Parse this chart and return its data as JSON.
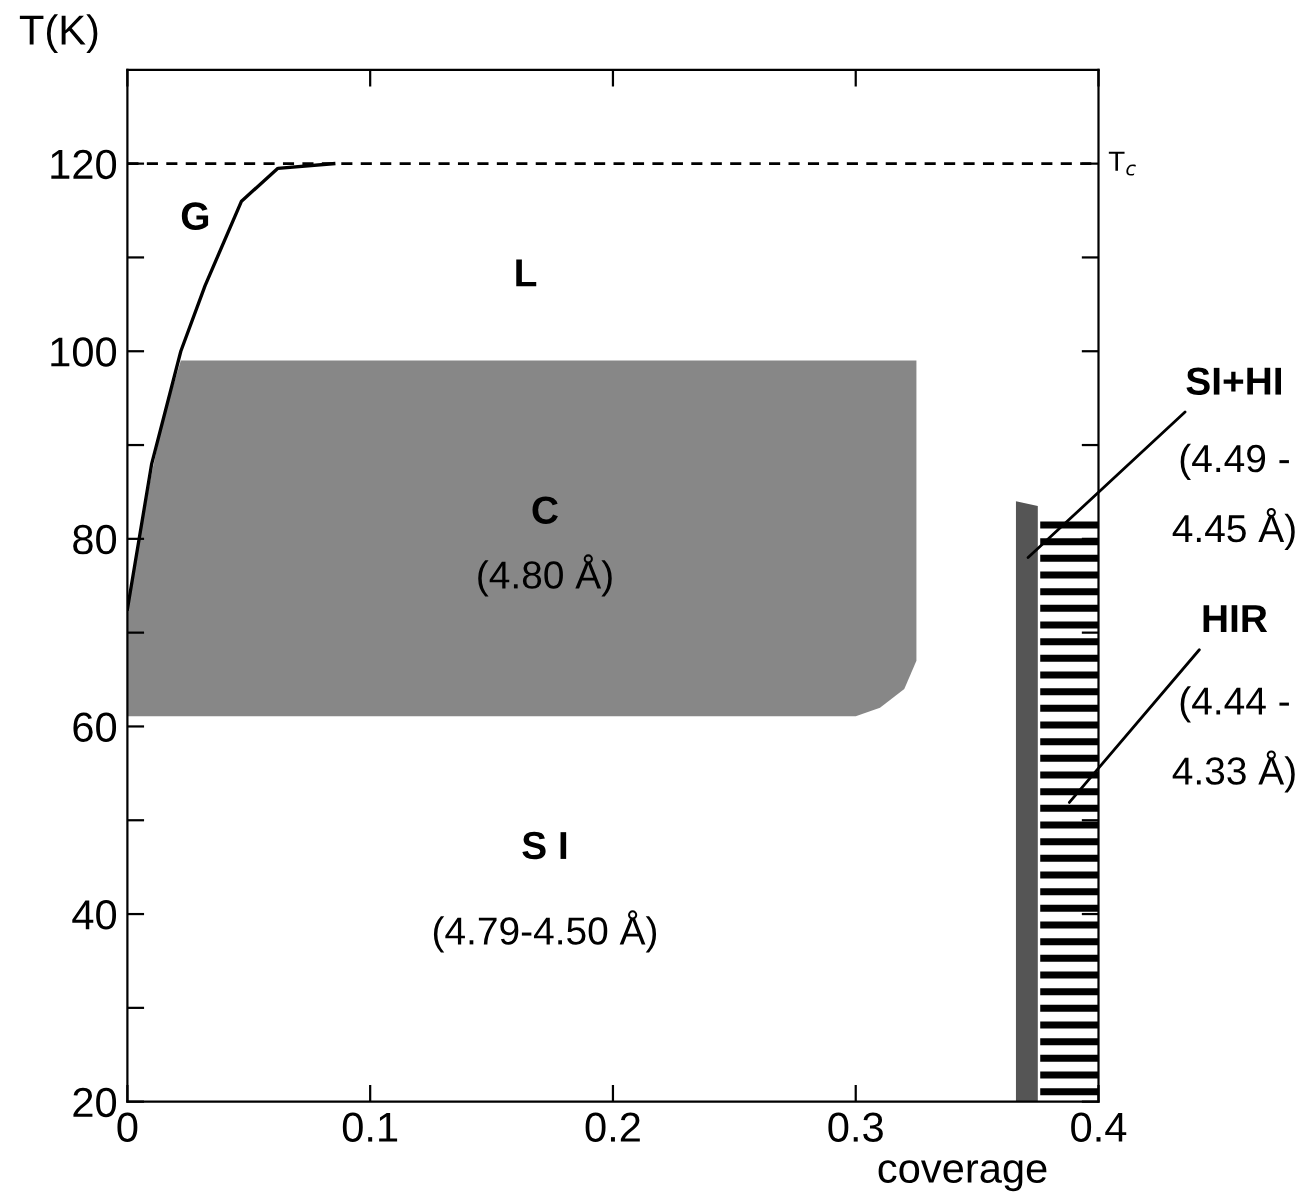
{
  "chart_data": {
    "type": "area",
    "xlabel": "coverage",
    "ylabel": "T(K)",
    "xlim": [
      0,
      0.4
    ],
    "ylim": [
      20,
      130
    ],
    "xticks": [
      0,
      0.1,
      0.2,
      0.3,
      0.4
    ],
    "yticks": [
      20,
      {
        "value": 30,
        "label": null
      },
      40,
      {
        "value": 50,
        "label": null
      },
      60,
      {
        "value": 70,
        "label": null
      },
      80,
      {
        "value": 90,
        "label": null
      },
      100,
      {
        "value": 110,
        "label": null
      },
      120
    ],
    "grid": false,
    "legend": false,
    "series": [
      {
        "color": "#878787",
        "x": [
          0,
          0.005,
          0.01,
          0.015,
          0.022,
          0.3,
          0.31,
          0.32,
          0.325
        ],
        "values": [
          null,
          null,
          null,
          null,
          null,
          null,
          null,
          null,
          null
        ],
        "upper": [
          72.5,
          80,
          87,
          93,
          99,
          99,
          99,
          99,
          99
        ],
        "lower": [
          61.1,
          61.1,
          61.1,
          61.1,
          61.1,
          61.1,
          62,
          64,
          67
        ]
      },
      {
        "type": "line",
        "color": "#000000",
        "line_style": "solid",
        "marker": "none",
        "x": [
          0,
          0.01,
          0.022,
          0.032,
          0.047,
          0.062,
          0.085
        ],
        "values": [
          72.5,
          88,
          100,
          107,
          116,
          119.5,
          120
        ]
      },
      {
        "color": "#555555",
        "x": [
          0.366,
          0.375
        ],
        "values": [
          84,
          83.5
        ]
      },
      {
        "color": "#000000",
        "x": [
          0.376,
          0.4
        ],
        "values": [
          82.7,
          82.7
        ]
      }
    ],
    "ref_lines": [
      {
        "axis": "y",
        "value": 120,
        "label": "T$_{c}$",
        "line_style": "dashed",
        "color": "#000000"
      }
    ],
    "annotations": [
      "G",
      "L",
      "C",
      "(4.80 Å)",
      "S I",
      "(4.79-4.50 Å)",
      {
        "text": "SI+HI",
        "x": 0.371,
        "y": 78
      },
      "(4.49 -",
      "4.45 Å)",
      "HIR",
      "(4.44 -",
      "4.33 Å)"
    ]
  }
}
